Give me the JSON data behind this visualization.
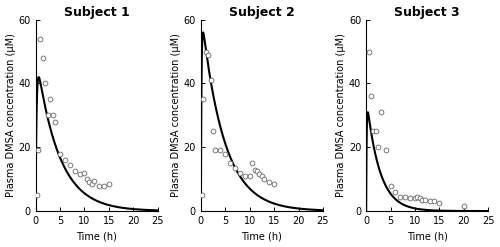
{
  "subjects": [
    "Subject 1",
    "Subject 2",
    "Subject 3"
  ],
  "ylabel": "Plasma DMSA concentration (μM)",
  "xlabel": "Time (h)",
  "ylim": [
    60,
    0
  ],
  "xlim": [
    0,
    25
  ],
  "yticks": [
    0,
    20,
    40,
    60
  ],
  "xticks": [
    0,
    5,
    10,
    15,
    20,
    25
  ],
  "scatter_data": {
    "s1_x": [
      0.25,
      0.5,
      1.0,
      1.5,
      2.0,
      2.5,
      3.0,
      3.5,
      4.0,
      5.0,
      6.0,
      7.0,
      8.0,
      9.0,
      10.0,
      10.5,
      11.0,
      11.5,
      12.0,
      13.0,
      14.0,
      15.0
    ],
    "s1_y": [
      5.0,
      19.0,
      54.0,
      48.0,
      40.0,
      30.0,
      35.0,
      30.0,
      28.0,
      18.0,
      16.0,
      14.5,
      12.5,
      11.5,
      12.0,
      10.0,
      9.0,
      8.5,
      9.5,
      8.0,
      8.0,
      8.5
    ],
    "s2_x": [
      0.25,
      0.5,
      1.0,
      1.5,
      2.0,
      2.5,
      3.0,
      4.0,
      5.0,
      6.0,
      7.0,
      8.0,
      9.0,
      10.0,
      10.5,
      11.0,
      11.5,
      12.0,
      12.5,
      13.0,
      14.0,
      15.0
    ],
    "s2_y": [
      5.0,
      35.0,
      50.0,
      49.0,
      41.0,
      25.0,
      19.0,
      19.0,
      18.0,
      15.0,
      13.5,
      12.0,
      11.0,
      11.0,
      15.0,
      13.0,
      12.5,
      11.5,
      11.0,
      10.0,
      9.0,
      8.5
    ],
    "s3_x": [
      0.5,
      1.0,
      1.5,
      2.0,
      2.5,
      3.0,
      4.0,
      5.0,
      6.0,
      7.0,
      8.0,
      9.0,
      10.0,
      10.5,
      11.0,
      11.5,
      12.0,
      13.0,
      14.0,
      15.0,
      20.0
    ],
    "s3_y": [
      50.0,
      36.0,
      25.0,
      25.0,
      20.0,
      31.0,
      19.0,
      8.0,
      6.0,
      4.5,
      4.5,
      4.0,
      4.0,
      4.5,
      4.0,
      3.5,
      3.5,
      3.0,
      3.0,
      2.5,
      1.5
    ]
  },
  "curve_params": {
    "s1": {
      "A": 42.0,
      "k_rise": 5.0,
      "k_fall": 0.22
    },
    "s2": {
      "A": 56.0,
      "k_rise": 8.0,
      "k_fall": 0.22
    },
    "s3": {
      "A": 31.0,
      "k_rise": 10.0,
      "k_fall": 0.38
    }
  },
  "line_color": "#000000",
  "scatter_facecolor": "white",
  "scatter_edgecolor": "#666666",
  "scatter_size": 12,
  "scatter_lw": 0.6,
  "line_width": 1.5,
  "title_fontsize": 9,
  "label_fontsize": 7,
  "tick_fontsize": 7,
  "background_color": "#ffffff"
}
